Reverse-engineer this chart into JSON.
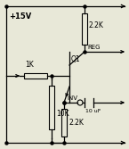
{
  "bg_color": "#e8e8d8",
  "line_color": "#000000",
  "vcc_label": "+15V",
  "r_top_label": "2.2K",
  "r_bottom_label": "2.2K",
  "r1_label": "1K",
  "r2_label": "10K",
  "c_label": "10 uF",
  "q_label": "Q1",
  "reg_label": "REG",
  "inv_label": "INV",
  "figsize": [
    1.45,
    1.67
  ],
  "dpi": 100
}
